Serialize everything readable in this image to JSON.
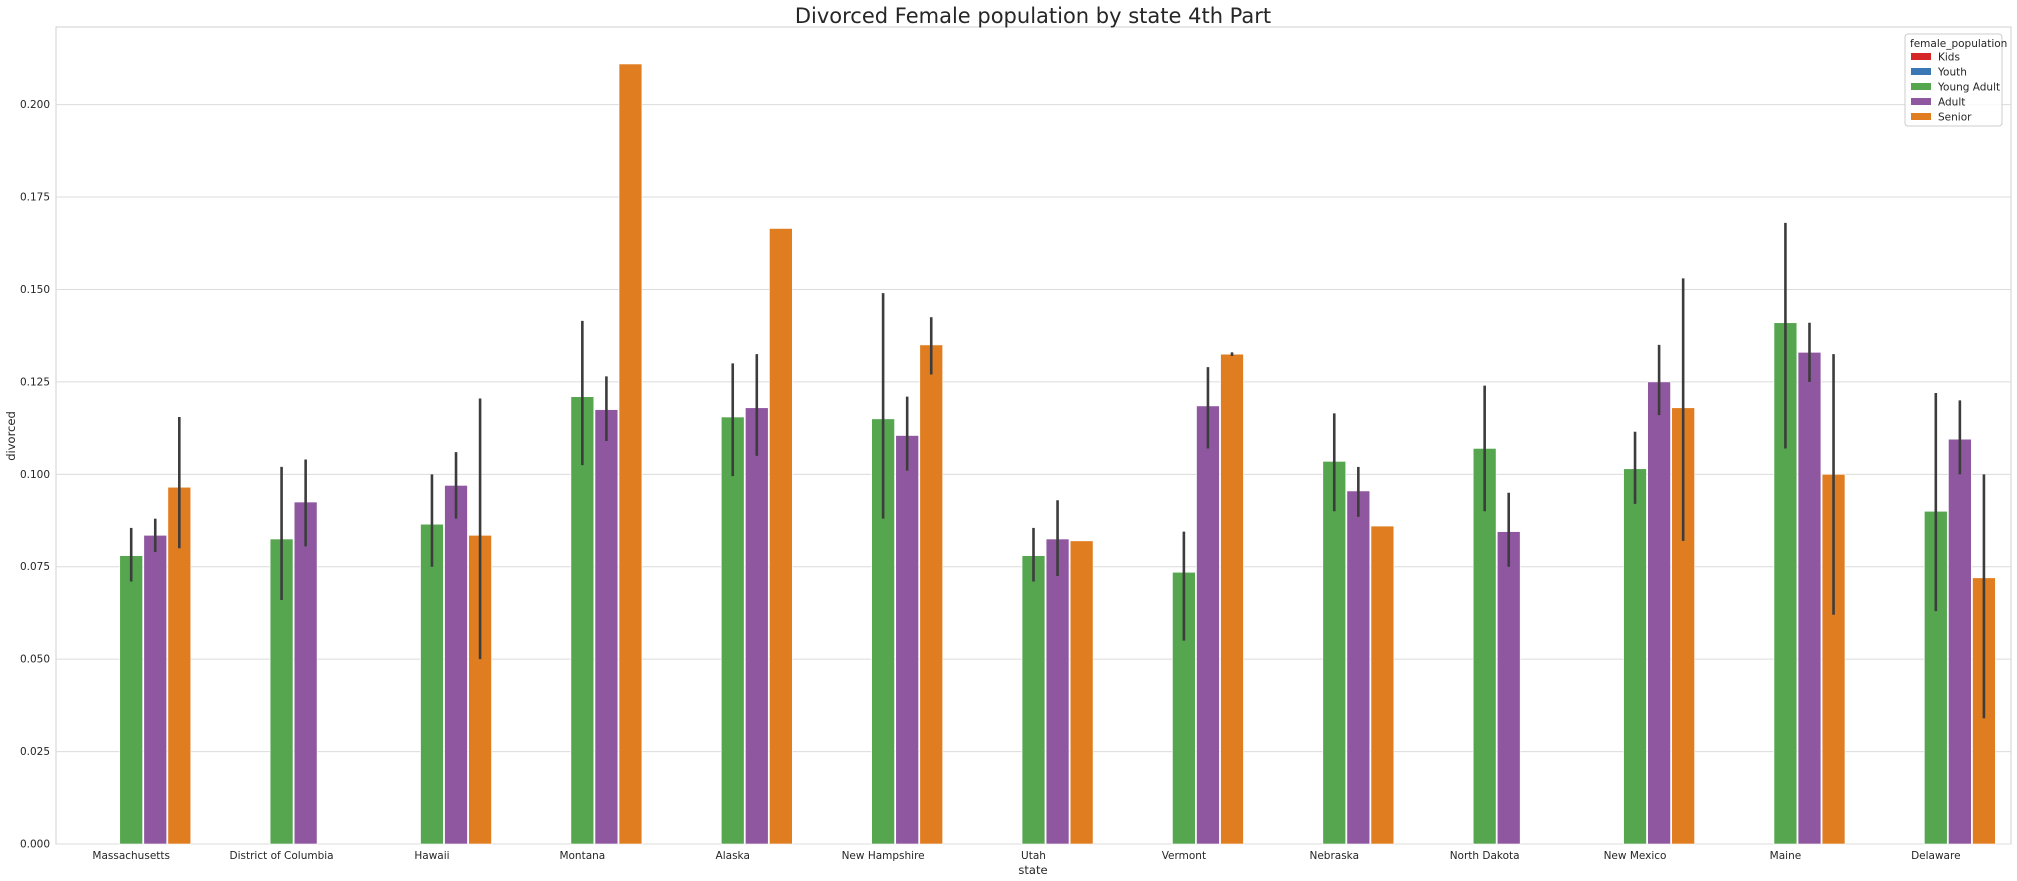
{
  "chart_data": {
    "type": "bar",
    "title": "Divorced Female population by state 4th Part",
    "xlabel": "state",
    "ylabel": "divorced",
    "ylim": [
      0,
      0.221
    ],
    "yticks": [
      "0.000",
      "0.025",
      "0.050",
      "0.075",
      "0.100",
      "0.125",
      "0.150",
      "0.175",
      "0.200"
    ],
    "grid": "horizontal",
    "legend_position": "top-right",
    "legend_title": "female_population",
    "categories": [
      "Massachusetts",
      "District of Columbia",
      "Hawaii",
      "Montana",
      "Alaska",
      "New Hampshire",
      "Utah",
      "Vermont",
      "Nebraska",
      "North Dakota",
      "New Mexico",
      "Maine",
      "Delaware"
    ],
    "series": [
      {
        "name": "Kids",
        "color": "#d62728",
        "values": [
          null,
          null,
          null,
          null,
          null,
          null,
          null,
          null,
          null,
          null,
          null,
          null,
          null
        ],
        "err_low": [],
        "err_high": []
      },
      {
        "name": "Youth",
        "color": "#3a78b5",
        "values": [
          null,
          null,
          null,
          null,
          null,
          null,
          null,
          null,
          null,
          null,
          null,
          null,
          null
        ],
        "err_low": [],
        "err_high": []
      },
      {
        "name": "Young Adult",
        "color": "#55a64f",
        "values": [
          0.078,
          0.0825,
          0.0865,
          0.121,
          0.1155,
          0.115,
          0.078,
          0.0735,
          0.1035,
          0.107,
          0.1015,
          0.141,
          0.09
        ],
        "err_low": [
          0.071,
          0.066,
          0.075,
          0.1025,
          0.0995,
          0.088,
          0.071,
          0.055,
          0.09,
          0.09,
          0.092,
          0.107,
          0.063
        ],
        "err_high": [
          0.0855,
          0.102,
          0.1,
          0.1415,
          0.13,
          0.149,
          0.0855,
          0.0845,
          0.1165,
          0.124,
          0.1115,
          0.168,
          0.122
        ]
      },
      {
        "name": "Adult",
        "color": "#8e57a0",
        "values": [
          0.0835,
          0.0925,
          0.097,
          0.1175,
          0.118,
          0.1105,
          0.0825,
          0.1185,
          0.0955,
          0.0845,
          0.125,
          0.133,
          0.1095
        ],
        "err_low": [
          0.079,
          0.0805,
          0.088,
          0.109,
          0.105,
          0.101,
          0.0725,
          0.107,
          0.0885,
          0.075,
          0.116,
          0.125,
          0.1
        ],
        "err_high": [
          0.088,
          0.104,
          0.106,
          0.1265,
          0.1325,
          0.121,
          0.093,
          0.129,
          0.102,
          0.095,
          0.135,
          0.141,
          0.12
        ]
      },
      {
        "name": "Senior",
        "color": "#e07d20",
        "values": [
          0.0965,
          null,
          0.0835,
          0.211,
          0.1665,
          0.135,
          0.082,
          0.1325,
          0.086,
          null,
          0.118,
          0.1,
          0.072
        ],
        "err_low": [
          0.08,
          null,
          0.05,
          null,
          null,
          0.127,
          null,
          0.132,
          null,
          null,
          0.082,
          0.062,
          0.034
        ],
        "err_high": [
          0.1155,
          null,
          0.1205,
          null,
          null,
          0.1425,
          null,
          0.133,
          null,
          null,
          0.153,
          0.1325,
          0.1
        ]
      }
    ]
  }
}
